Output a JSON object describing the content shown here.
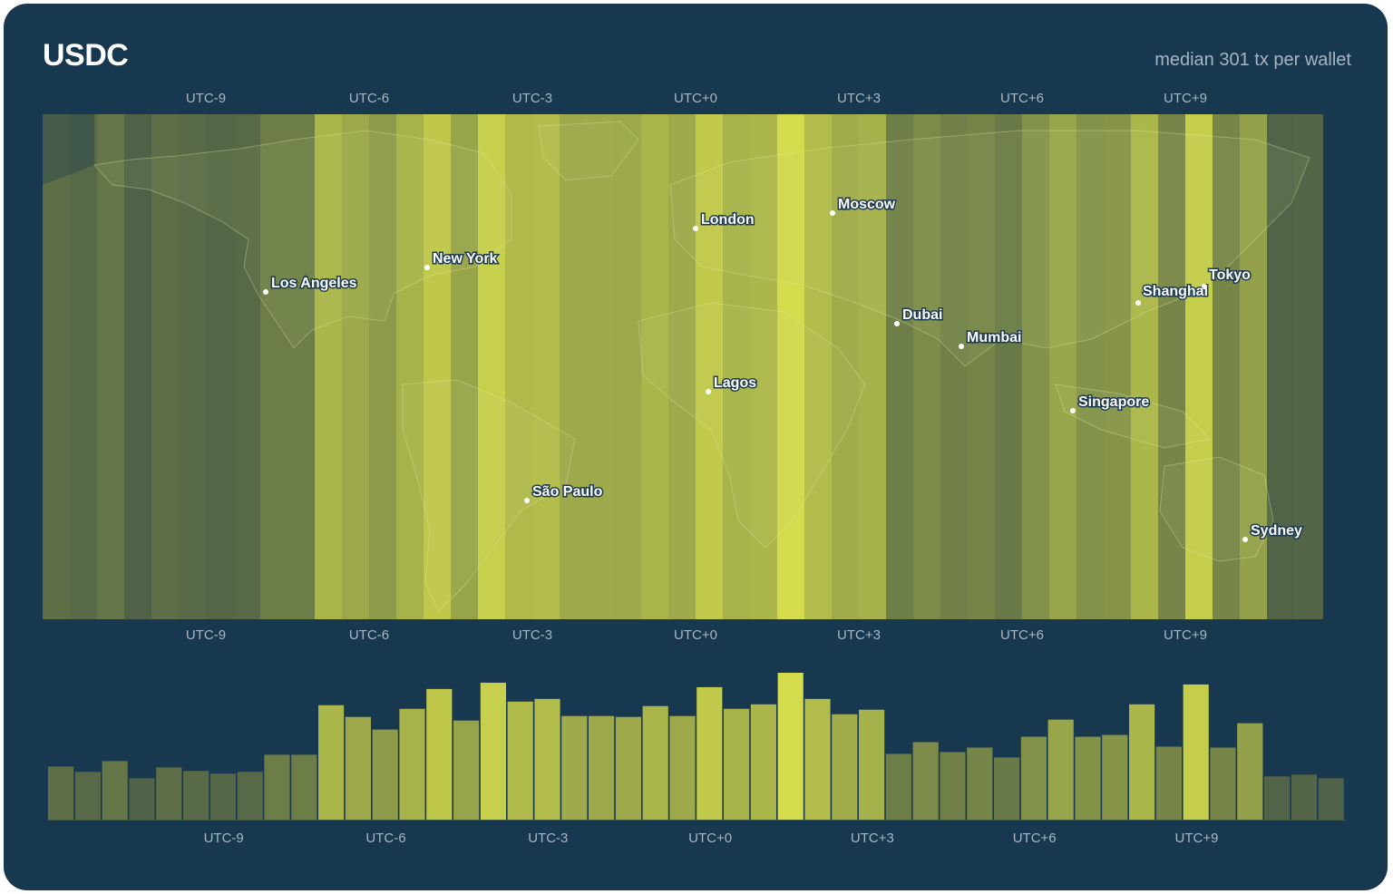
{
  "header": {
    "title": "USDC",
    "subtitle": "median 301 tx per wallet"
  },
  "timezones": {
    "labels": [
      "UTC-9",
      "UTC-6",
      "UTC-3",
      "UTC+0",
      "UTC+3",
      "UTC+6",
      "UTC+9"
    ],
    "offsets": [
      -9,
      -6,
      -3,
      0,
      3,
      6,
      9
    ]
  },
  "map": {
    "colors": {
      "ocean": "#17384f",
      "low": "#4f6247",
      "high": "#d4db4c",
      "city_dot": "#ffffff"
    },
    "cities": [
      {
        "name": "Los Angeles",
        "utc": -8
      },
      {
        "name": "New York",
        "utc": -5
      },
      {
        "name": "London",
        "utc": 0
      },
      {
        "name": "Moscow",
        "utc": 3
      },
      {
        "name": "Dubai",
        "utc": 4
      },
      {
        "name": "Mumbai",
        "utc": 5.5
      },
      {
        "name": "Lagos",
        "utc": 1
      },
      {
        "name": "São Paulo",
        "utc": -3
      },
      {
        "name": "Singapore",
        "utc": 8
      },
      {
        "name": "Shanghai",
        "utc": 8
      },
      {
        "name": "Tokyo",
        "utc": 9
      },
      {
        "name": "Sydney",
        "utc": 10
      }
    ]
  },
  "chart_data": {
    "type": "bar",
    "x_unit": "UTC offset (hours)",
    "x": [
      -12,
      -11.5,
      -11,
      -10.5,
      -10,
      -9.5,
      -9,
      -8.5,
      -8,
      -7.5,
      -7,
      -6.5,
      -6,
      -5.5,
      -5,
      -4.5,
      -4,
      -3.5,
      -3,
      -2.5,
      -2,
      -1.5,
      -1,
      -0.5,
      0,
      0.5,
      1,
      1.5,
      2,
      2.5,
      3,
      3.5,
      4,
      4.5,
      5,
      5.5,
      6,
      6.5,
      7,
      7.5,
      8,
      8.5,
      9,
      9.5,
      10,
      10.5,
      11,
      11.5
    ],
    "values": [
      59,
      53,
      65,
      46,
      58,
      54,
      51,
      53,
      72,
      72,
      127,
      114,
      100,
      123,
      145,
      110,
      152,
      131,
      134,
      115,
      115,
      114,
      126,
      115,
      147,
      123,
      128,
      163,
      134,
      117,
      122,
      73,
      86,
      75,
      80,
      69,
      92,
      111,
      92,
      94,
      128,
      81,
      150,
      80,
      107,
      48,
      50,
      46
    ],
    "xlabel": "",
    "ylabel": "",
    "legend": "none",
    "grid": false,
    "tick_labels": [
      "UTC-9",
      "UTC-6",
      "UTC-3",
      "UTC+0",
      "UTC+3",
      "UTC+6",
      "UTC+9"
    ]
  }
}
